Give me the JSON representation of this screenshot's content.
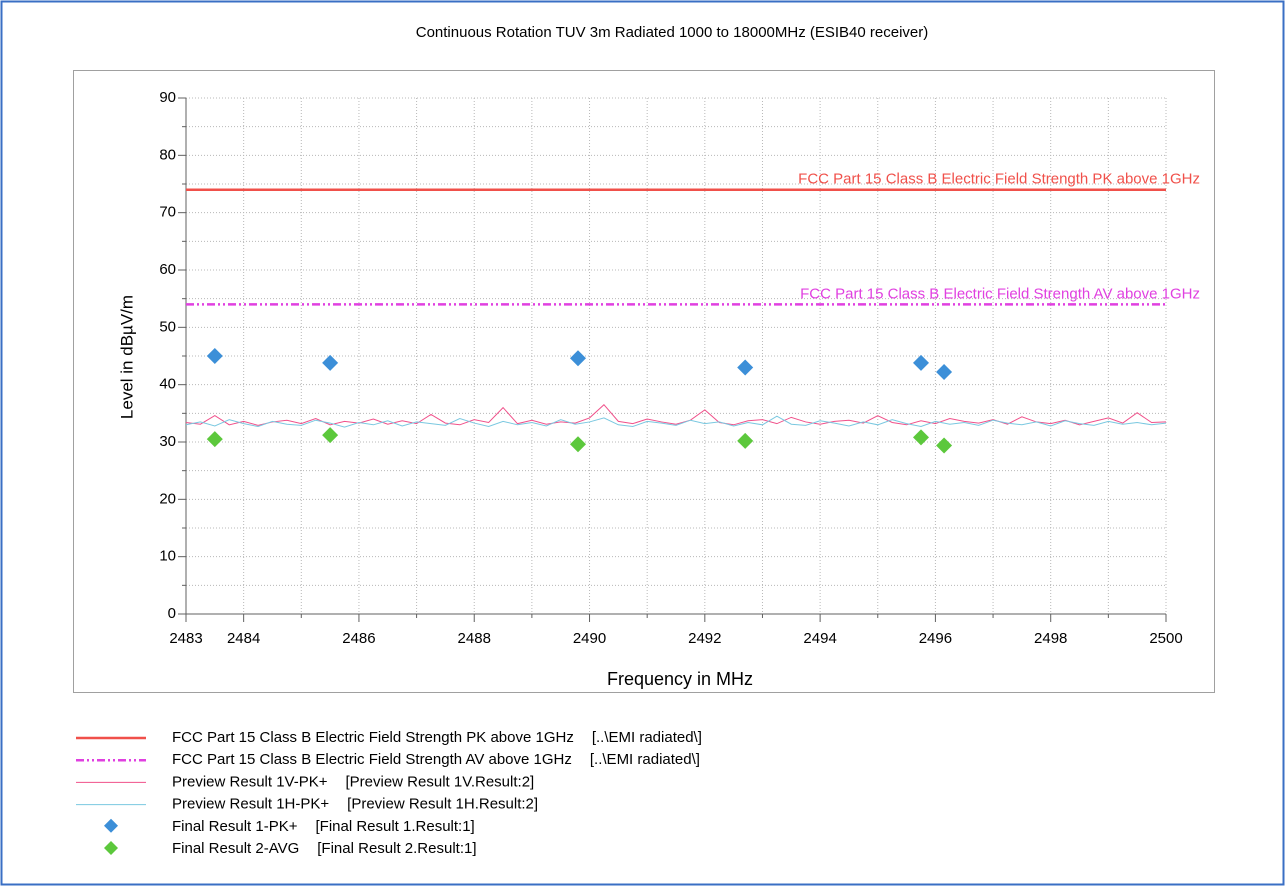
{
  "chart_data": {
    "type": "line",
    "title": "Continuous Rotation TUV 3m Radiated 1000 to 18000MHz (ESIB40 receiver)",
    "xlabel": "Frequency in MHz",
    "ylabel": "Level in dBµV/m",
    "xlim": [
      2483,
      2500
    ],
    "ylim": [
      0,
      90
    ],
    "xticks": [
      2483,
      2484,
      2486,
      2488,
      2490,
      2492,
      2494,
      2496,
      2498,
      2500
    ],
    "xminor": [
      2485,
      2487,
      2489,
      2491,
      2493,
      2495,
      2497,
      2499
    ],
    "yticks": [
      0,
      10,
      20,
      30,
      40,
      50,
      60,
      70,
      80,
      90
    ],
    "yminor": [
      5,
      15,
      25,
      35,
      45,
      55,
      65,
      75,
      85
    ],
    "grid": true,
    "x": [
      2483,
      2483.25,
      2483.5,
      2483.75,
      2484,
      2484.25,
      2484.5,
      2484.75,
      2485,
      2485.25,
      2485.5,
      2485.75,
      2486,
      2486.25,
      2486.5,
      2486.75,
      2487,
      2487.25,
      2487.5,
      2487.75,
      2488,
      2488.25,
      2488.5,
      2488.75,
      2489,
      2489.25,
      2489.5,
      2489.75,
      2490,
      2490.25,
      2490.5,
      2490.75,
      2491,
      2491.25,
      2491.5,
      2491.75,
      2492,
      2492.25,
      2492.5,
      2492.75,
      2493,
      2493.25,
      2493.5,
      2493.75,
      2494,
      2494.25,
      2494.5,
      2494.75,
      2495,
      2495.25,
      2495.5,
      2495.75,
      2496,
      2496.25,
      2496.5,
      2496.75,
      2497,
      2497.25,
      2497.5,
      2497.75,
      2498,
      2498.25,
      2498.5,
      2498.75,
      2499,
      2499.25,
      2499.5,
      2499.75,
      2500
    ],
    "series": [
      {
        "name": "FCC Part 15 Class B Electric Field Strength PK above 1GHz",
        "source": "[..\\EMI radiated\\]",
        "type": "line",
        "color": "#f0504a",
        "width": 2.5,
        "annotate": true,
        "x": [
          2483,
          2500
        ],
        "values": [
          74,
          74
        ]
      },
      {
        "name": "FCC Part 15 Class B Electric Field Strength AV above 1GHz",
        "source": "[..\\EMI radiated\\]",
        "type": "line",
        "dash": "dashdot",
        "color": "#e040e0",
        "width": 2.5,
        "annotate": true,
        "x": [
          2483,
          2500
        ],
        "values": [
          54,
          54
        ]
      },
      {
        "name": "Preview Result 1V-PK+",
        "source": "[Preview Result 1V.Result:2]",
        "type": "line",
        "color": "#f0508a",
        "width": 1,
        "values": [
          33.4,
          33.1,
          34.6,
          33.0,
          33.6,
          32.9,
          33.5,
          33.8,
          33.2,
          34.1,
          33.0,
          33.6,
          33.3,
          34.0,
          33.1,
          33.7,
          33.2,
          34.8,
          33.3,
          33.0,
          33.9,
          33.4,
          36.0,
          33.2,
          33.8,
          33.1,
          33.5,
          33.3,
          34.2,
          36.5,
          33.6,
          33.2,
          34.0,
          33.5,
          33.1,
          33.8,
          35.6,
          33.4,
          33.0,
          33.7,
          33.9,
          33.2,
          34.3,
          33.5,
          33.1,
          33.6,
          33.8,
          33.3,
          34.6,
          33.4,
          33.0,
          33.7,
          33.2,
          34.1,
          33.6,
          33.3,
          33.9,
          33.1,
          34.4,
          33.5,
          33.2,
          33.8,
          33.0,
          33.6,
          34.2,
          33.3,
          35.1,
          33.4,
          33.5
        ]
      },
      {
        "name": "Preview Result 1H-PK+",
        "source": "[Preview Result 1H.Result:2]",
        "type": "line",
        "color": "#7ac8e0",
        "width": 1,
        "values": [
          33.0,
          33.5,
          32.8,
          33.9,
          33.2,
          32.7,
          33.6,
          33.1,
          32.9,
          33.8,
          33.3,
          32.6,
          33.4,
          33.0,
          33.7,
          32.8,
          33.5,
          33.2,
          32.9,
          34.1,
          33.3,
          32.7,
          33.6,
          33.0,
          33.4,
          32.8,
          33.9,
          33.1,
          33.5,
          34.2,
          33.0,
          32.7,
          33.6,
          33.3,
          32.9,
          33.8,
          33.2,
          33.5,
          32.8,
          33.4,
          33.0,
          34.5,
          33.1,
          32.9,
          33.7,
          33.3,
          32.8,
          33.5,
          33.0,
          33.9,
          33.2,
          32.7,
          33.6,
          33.1,
          33.4,
          32.9,
          33.8,
          33.3,
          33.0,
          33.5,
          32.8,
          33.7,
          33.2,
          32.9,
          33.6,
          33.1,
          33.4,
          33.0,
          33.3
        ]
      },
      {
        "name": "Final Result 1-PK+",
        "source": "[Final Result 1.Result:1]",
        "type": "scatter",
        "marker": "diamond",
        "color": "#3c8fd8",
        "x": [
          2483.5,
          2485.5,
          2489.8,
          2492.7,
          2495.75,
          2496.15
        ],
        "values": [
          45,
          43.8,
          44.6,
          43,
          43.8,
          42.2
        ]
      },
      {
        "name": "Final Result 2-AVG",
        "source": "[Final Result 2.Result:1]",
        "type": "scatter",
        "marker": "diamond",
        "color": "#5cc83c",
        "x": [
          2483.5,
          2485.5,
          2489.8,
          2492.7,
          2495.75,
          2496.15
        ],
        "values": [
          30.5,
          31.2,
          29.6,
          30.2,
          30.8,
          29.4
        ]
      }
    ]
  }
}
